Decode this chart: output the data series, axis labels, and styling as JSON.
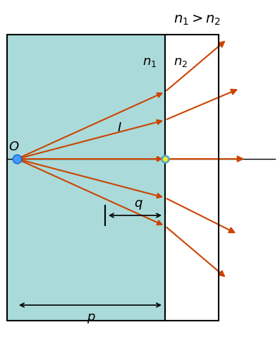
{
  "title": "$n_1 > n_2$",
  "label_n1": "$n_1$",
  "label_n2": "$n_2$",
  "label_O": "$O$",
  "label_I": "$I$",
  "label_p": "$p$",
  "label_q": "$q$",
  "bg_color_left": "#aadada",
  "bg_color_right": "#ffffff",
  "ray_color": "#cc4400",
  "dashed_color": "#333333",
  "dot_obj_color": "#4499ff",
  "dot_img_color": "#ffee00",
  "axis_color": "#111111"
}
